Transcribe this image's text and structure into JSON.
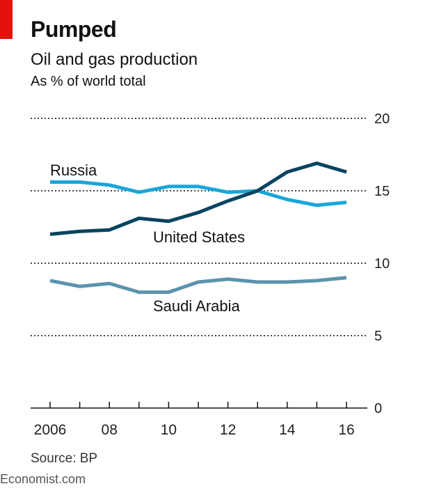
{
  "header": {
    "title": "Pumped",
    "subtitle": "Oil and gas production",
    "unit": "As % of world total"
  },
  "footer": {
    "source": "Source: BP",
    "brand": "Economist.com"
  },
  "colors": {
    "accent_red": "#e3120b",
    "russia": "#1aa6d9",
    "united_states": "#08445f",
    "saudi_arabia": "#5b93ad",
    "grid": "#444444"
  },
  "chart_data": {
    "type": "line",
    "x": [
      2006,
      2007,
      2008,
      2009,
      2010,
      2011,
      2012,
      2013,
      2014,
      2015,
      2016
    ],
    "x_tick_values": [
      2006,
      2008,
      2010,
      2012,
      2014,
      2016
    ],
    "x_tick_labels": [
      "2006",
      "08",
      "10",
      "12",
      "14",
      "16"
    ],
    "ylim": [
      0,
      20
    ],
    "y_ticks": [
      0,
      5,
      10,
      15,
      20
    ],
    "grid": true,
    "series": [
      {
        "name": "Russia",
        "color": "#1aa6d9",
        "values": [
          15.6,
          15.6,
          15.4,
          14.9,
          15.3,
          15.3,
          14.9,
          15.0,
          14.4,
          14.0,
          14.2
        ]
      },
      {
        "name": "United States",
        "color": "#08445f",
        "values": [
          12.0,
          12.2,
          12.3,
          13.1,
          12.9,
          13.5,
          14.3,
          15.0,
          16.3,
          16.9,
          16.3
        ]
      },
      {
        "name": "Saudi Arabia",
        "color": "#5b93ad",
        "values": [
          8.8,
          8.4,
          8.6,
          8.0,
          8.0,
          8.7,
          8.9,
          8.7,
          8.7,
          8.8,
          9.0
        ]
      }
    ]
  }
}
